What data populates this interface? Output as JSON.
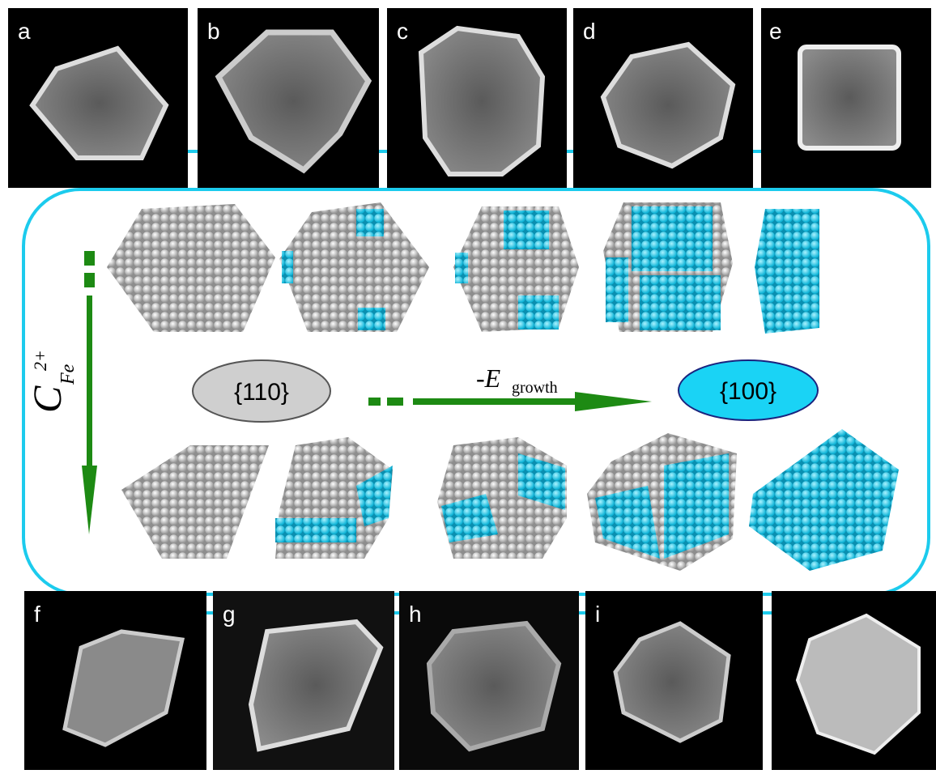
{
  "panels": {
    "top": [
      "a",
      "b",
      "c",
      "d",
      "e"
    ],
    "bottom": [
      "f",
      "g",
      "h",
      "i"
    ]
  },
  "concentration": {
    "symbol": "C",
    "subscript": "Fe",
    "superscript": "2+"
  },
  "facets": {
    "left": "{110}",
    "right": "{100}"
  },
  "energy": {
    "symbol": "-E",
    "subscript": "growth"
  }
}
